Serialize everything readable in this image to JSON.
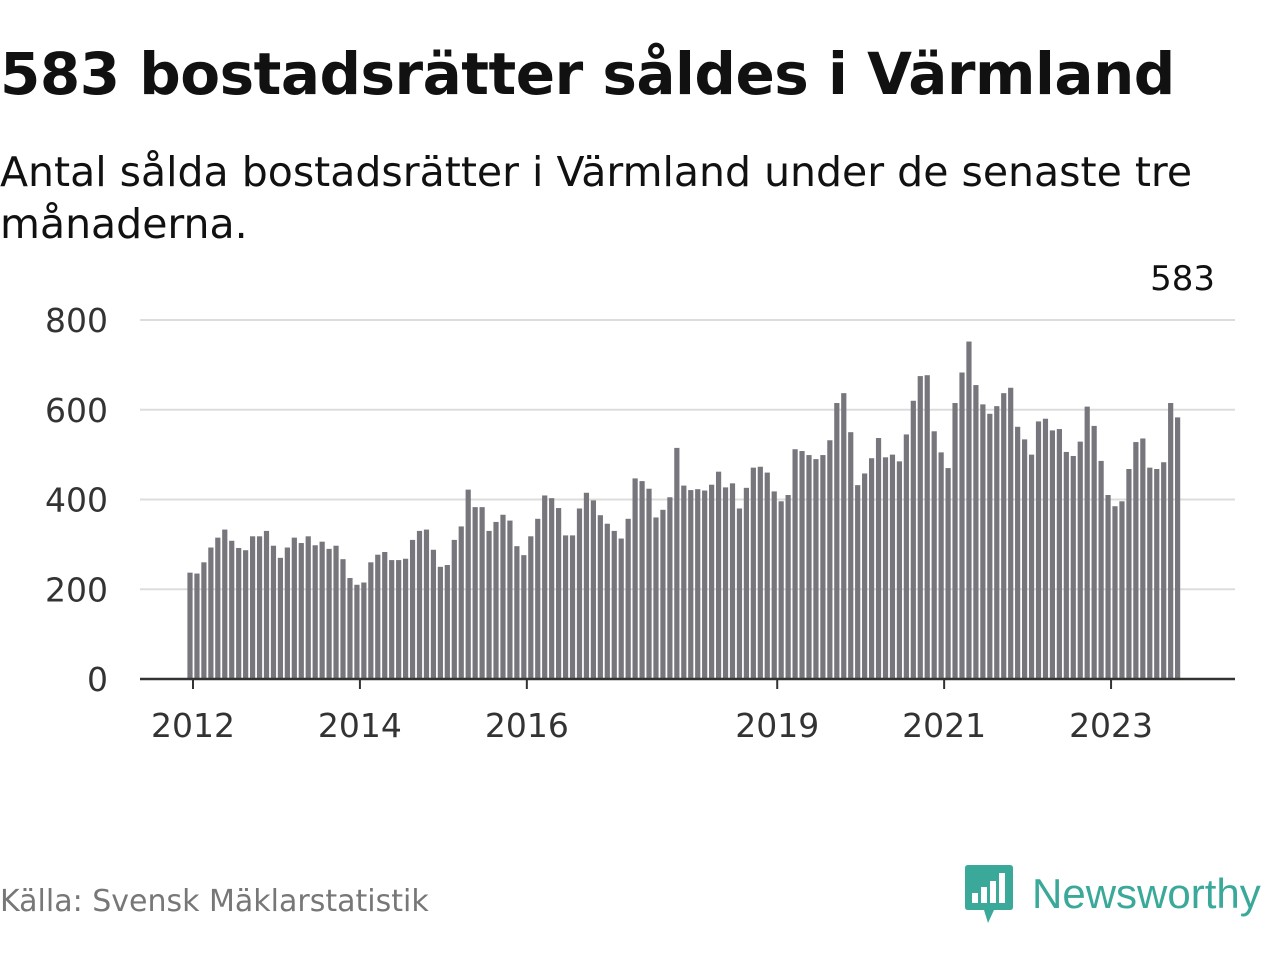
{
  "title": "583 bostadsrätter såldes i Värmland",
  "subtitle": "Antal sålda bostadsrätter i Värmland under de senaste tre månaderna.",
  "source": "Källa: Svensk Mäklarstatistik",
  "logo": {
    "text": "Newsworthy",
    "icon": "bar-chart-speech-bubble-icon",
    "color": "#3aa99a"
  },
  "colors": {
    "bars": "#77767c",
    "highlight": "#2aa198",
    "grid": "#dddddd",
    "axis": "#333333"
  },
  "chart_data": {
    "type": "bar",
    "title": "583 bostadsrätter såldes i Värmland",
    "subtitle": "Antal sålda bostadsrätter i Värmland under de senaste tre månaderna.",
    "xlabel": "",
    "ylabel": "",
    "ylim": [
      0,
      800
    ],
    "yticks": [
      0,
      200,
      400,
      600,
      800
    ],
    "grid": true,
    "start": "2012-01",
    "xticks": [
      {
        "label": "2012",
        "month_index": 0
      },
      {
        "label": "2014",
        "month_index": 24
      },
      {
        "label": "2016",
        "month_index": 48
      },
      {
        "label": "2019",
        "month_index": 84
      },
      {
        "label": "2021",
        "month_index": 108
      },
      {
        "label": "2023",
        "month_index": 132
      }
    ],
    "values": [
      237,
      235,
      260,
      293,
      315,
      333,
      308,
      292,
      287,
      318,
      318,
      330,
      297,
      270,
      293,
      315,
      303,
      318,
      298,
      306,
      290,
      297,
      267,
      225,
      210,
      215,
      260,
      277,
      283,
      265,
      265,
      268,
      310,
      330,
      333,
      288,
      250,
      254,
      310,
      340,
      422,
      383,
      383,
      330,
      350,
      366,
      353,
      296,
      276,
      318,
      357,
      409,
      403,
      381,
      320,
      320,
      380,
      415,
      398,
      365,
      346,
      330,
      313,
      357,
      447,
      441,
      424,
      360,
      377,
      405,
      515,
      431,
      421,
      423,
      420,
      433,
      462,
      427,
      436,
      380,
      426,
      471,
      473,
      460,
      418,
      396,
      410,
      512,
      508,
      499,
      490,
      499,
      532,
      615,
      637,
      550,
      432,
      458,
      492,
      537,
      494,
      500,
      485,
      545,
      620,
      675,
      677,
      552,
      505,
      470,
      615,
      683,
      752,
      655,
      612,
      591,
      608,
      637,
      649,
      562,
      534,
      500,
      574,
      580,
      554,
      557,
      506,
      497,
      529,
      607,
      564,
      486,
      410,
      385,
      396,
      468,
      528,
      536,
      471,
      468,
      483,
      615,
      583
    ],
    "highlight_index": 143,
    "annotation": {
      "text": "583",
      "index": 143
    }
  }
}
